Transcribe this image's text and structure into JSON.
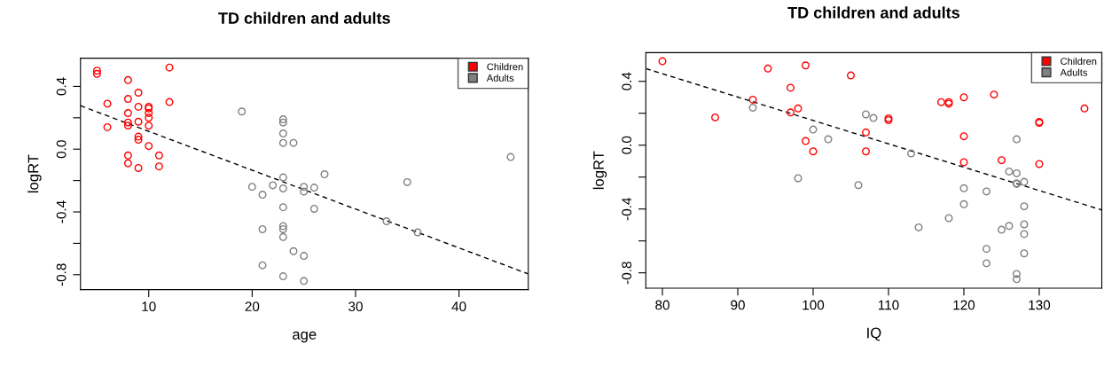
{
  "chart_data": [
    {
      "type": "scatter",
      "title": "TD children and adults",
      "xlabel": "age",
      "ylabel": "logRT",
      "xlim": [
        3.4,
        46.7
      ],
      "ylim": [
        -0.895,
        0.58
      ],
      "xticks": [
        10,
        20,
        30,
        40
      ],
      "yticks": [
        {
          "value": -0.8,
          "label": "-0.8"
        },
        {
          "value": -0.6,
          "label": null
        },
        {
          "value": -0.4,
          "label": "-0.4"
        },
        {
          "value": -0.2,
          "label": null
        },
        {
          "value": 0,
          "label": "0.0"
        },
        {
          "value": 0.2,
          "label": null
        },
        {
          "value": 0.4,
          "label": "0.4"
        }
      ],
      "grid": false,
      "legend": "top right",
      "marker": "circle",
      "series": [
        {
          "name": "Children",
          "color": "#ff0000",
          "x": [
            5,
            5,
            12,
            8,
            9,
            6,
            8,
            9,
            10,
            10,
            12,
            8,
            10,
            10,
            6,
            8,
            8,
            9,
            10,
            9,
            9,
            10,
            8,
            11,
            8,
            9,
            11
          ],
          "values": [
            0.5,
            0.48,
            0.52,
            0.44,
            0.36,
            0.29,
            0.32,
            0.27,
            0.27,
            0.26,
            0.3,
            0.23,
            0.23,
            0.2,
            0.14,
            0.17,
            0.15,
            0.175,
            0.15,
            0.08,
            0.06,
            0.02,
            -0.04,
            -0.04,
            -0.09,
            -0.12,
            -0.11
          ]
        },
        {
          "name": "Adults",
          "color": "#808080",
          "x": [
            19,
            23,
            23,
            23,
            23,
            24,
            23,
            20,
            22,
            23,
            21,
            23,
            21,
            23,
            23,
            23,
            24,
            21,
            23,
            27,
            25,
            25,
            26,
            26,
            25,
            25,
            35,
            33,
            36,
            45
          ],
          "values": [
            0.24,
            0.19,
            0.17,
            0.1,
            0.04,
            0.04,
            -0.18,
            -0.24,
            -0.23,
            -0.25,
            -0.29,
            -0.37,
            -0.51,
            -0.49,
            -0.51,
            -0.56,
            -0.65,
            -0.74,
            -0.81,
            -0.16,
            -0.24,
            -0.27,
            -0.245,
            -0.38,
            -0.68,
            -0.84,
            -0.21,
            -0.46,
            -0.53,
            -0.05
          ]
        },
        {
          "type": "line",
          "color": "#000000",
          "marker": "none",
          "line_style": "dashed",
          "x": [
            3.4,
            46.7
          ],
          "values": [
            0.277,
            -0.795
          ]
        }
      ]
    },
    {
      "type": "scatter",
      "title": "TD children and adults",
      "xlabel": "IQ",
      "ylabel": "logRT",
      "xlim": [
        77.8,
        138.3
      ],
      "ylim": [
        -0.896,
        0.58
      ],
      "xticks": [
        80,
        90,
        100,
        110,
        120,
        130
      ],
      "yticks": [
        {
          "value": -0.8,
          "label": "-0.8"
        },
        {
          "value": -0.6,
          "label": null
        },
        {
          "value": -0.4,
          "label": "-0.4"
        },
        {
          "value": -0.2,
          "label": null
        },
        {
          "value": 0,
          "label": "0.0"
        },
        {
          "value": 0.2,
          "label": null
        },
        {
          "value": 0.4,
          "label": "0.4"
        }
      ],
      "grid": false,
      "legend": "top right",
      "marker": "circle",
      "series": [
        {
          "name": "Children",
          "color": "#ff0000",
          "x": [
            80,
            87,
            92,
            94,
            99,
            97,
            97,
            98,
            99,
            100,
            105,
            110,
            110,
            117,
            118,
            118,
            120,
            124,
            136,
            130,
            130,
            107,
            107,
            120,
            120,
            125,
            130
          ],
          "values": [
            0.526,
            0.174,
            0.285,
            0.48,
            0.5,
            0.36,
            0.205,
            0.23,
            0.026,
            -0.039,
            0.437,
            0.168,
            0.157,
            0.27,
            0.27,
            0.26,
            0.3,
            0.317,
            0.23,
            0.146,
            0.14,
            0.08,
            -0.039,
            0.056,
            -0.107,
            -0.094,
            -0.118
          ]
        },
        {
          "name": "Adults",
          "color": "#808080",
          "x": [
            92,
            100,
            102,
            98,
            106,
            107,
            108,
            113,
            114,
            118,
            120,
            120,
            123,
            123,
            123,
            125,
            126,
            126,
            127,
            127,
            127,
            127,
            128,
            128,
            128,
            128,
            128,
            127,
            127
          ],
          "values": [
            0.235,
            0.098,
            0.037,
            -0.207,
            -0.25,
            0.193,
            0.17,
            -0.052,
            -0.515,
            -0.457,
            -0.27,
            -0.37,
            -0.29,
            -0.65,
            -0.74,
            -0.53,
            -0.506,
            -0.165,
            -0.176,
            0.037,
            -0.239,
            -0.243,
            -0.23,
            -0.383,
            -0.496,
            -0.557,
            -0.678,
            -0.807,
            -0.84
          ]
        },
        {
          "type": "line",
          "color": "#000000",
          "marker": "none",
          "line_style": "dashed",
          "x": [
            77.8,
            138.3
          ],
          "values": [
            0.48,
            -0.406
          ]
        }
      ]
    }
  ]
}
